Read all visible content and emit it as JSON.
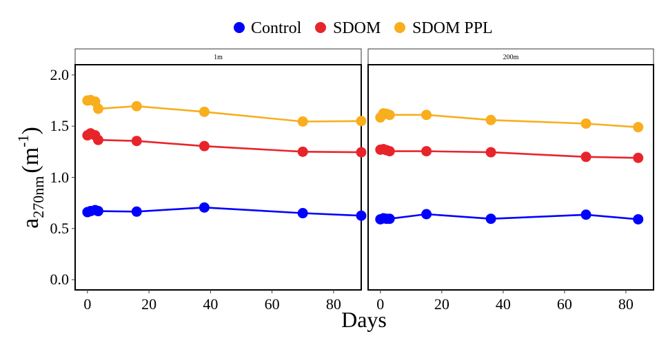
{
  "chart_data": {
    "type": "line",
    "xlabel": "Days",
    "ylabel": {
      "main": "a",
      "subscript": "270nm",
      "unit_open": "(m",
      "unit_sup": "-1",
      "unit_close": ")"
    },
    "xlim": [
      -4,
      89
    ],
    "ylim": [
      -0.1,
      2.1
    ],
    "x_ticks": [
      0,
      20,
      40,
      60,
      80
    ],
    "y_ticks": [
      0.0,
      0.5,
      1.0,
      1.5,
      2.0
    ],
    "y_tick_labels": [
      "0.0",
      "0.5",
      "1.0",
      "1.5",
      "2.0"
    ],
    "grid": false,
    "legend_position": "top",
    "legend": [
      {
        "name": "Control",
        "color": "#0000FF"
      },
      {
        "name": "SDOM",
        "color": "#E8242B"
      },
      {
        "name": "SDOM PPL",
        "color": "#F8AE1D"
      }
    ],
    "panels": [
      {
        "label": "1m",
        "series": [
          {
            "name": "Control",
            "color": "#0000FF",
            "x": [
              0,
              1,
              2.5,
              3.5,
              16,
              38,
              70,
              89
            ],
            "y": [
              0.66,
              0.67,
              0.68,
              0.67,
              0.665,
              0.705,
              0.65,
              0.625
            ]
          },
          {
            "name": "SDOM",
            "color": "#E8242B",
            "x": [
              0,
              1,
              2.5,
              3.5,
              16,
              38,
              70,
              89
            ],
            "y": [
              1.41,
              1.43,
              1.41,
              1.365,
              1.355,
              1.305,
              1.25,
              1.245
            ]
          },
          {
            "name": "SDOM PPL",
            "color": "#F8AE1D",
            "x": [
              0,
              1,
              2.5,
              3.5,
              16,
              38,
              70,
              89
            ],
            "y": [
              1.75,
              1.755,
              1.74,
              1.67,
              1.695,
              1.64,
              1.545,
              1.55
            ]
          }
        ]
      },
      {
        "label": "200m",
        "series": [
          {
            "name": "Control",
            "color": "#0000FF",
            "x": [
              0,
              1,
              2,
              3,
              15,
              36,
              67,
              84
            ],
            "y": [
              0.59,
              0.6,
              0.595,
              0.595,
              0.64,
              0.595,
              0.635,
              0.59
            ]
          },
          {
            "name": "SDOM",
            "color": "#E8242B",
            "x": [
              0,
              1,
              2,
              3,
              15,
              36,
              67,
              84
            ],
            "y": [
              1.27,
              1.275,
              1.265,
              1.255,
              1.255,
              1.245,
              1.2,
              1.19
            ]
          },
          {
            "name": "SDOM PPL",
            "color": "#F8AE1D",
            "x": [
              0,
              1,
              2,
              3,
              15,
              36,
              67,
              84
            ],
            "y": [
              1.585,
              1.625,
              1.62,
              1.61,
              1.61,
              1.56,
              1.525,
              1.49
            ]
          }
        ]
      }
    ]
  }
}
